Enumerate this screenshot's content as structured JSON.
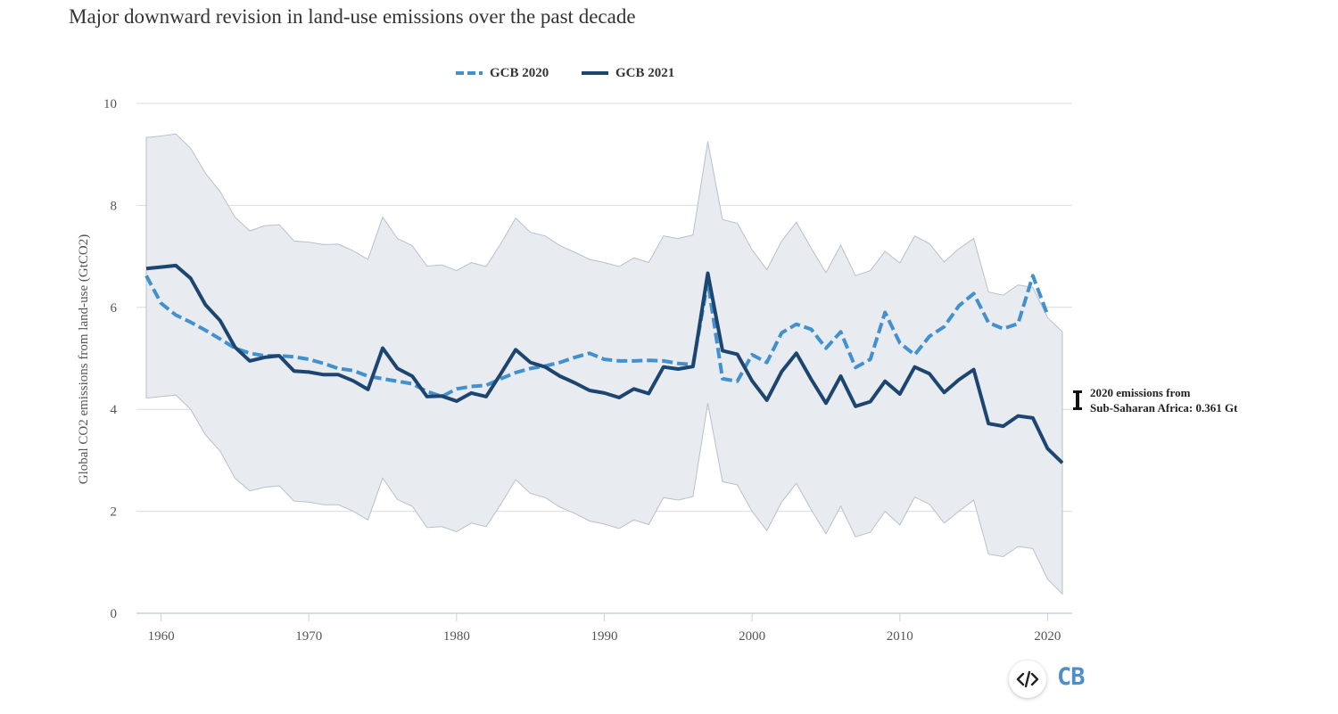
{
  "chart_data": {
    "type": "line",
    "title": "Major downward revision in land-use emissions over the past decade",
    "ylabel": "Global CO2 emissions from land-use (GtCO2)",
    "xlabel": "",
    "ylim": [
      0,
      10
    ],
    "xlim": [
      1959,
      2021
    ],
    "y_ticks": [
      0,
      2,
      4,
      6,
      8,
      10
    ],
    "x_ticks": [
      1960,
      1970,
      1980,
      1990,
      2000,
      2010,
      2020
    ],
    "grid": true,
    "legend_position": "top-center",
    "series": [
      {
        "name": "GCB 2020",
        "style": "dashed",
        "color": "#4290cd",
        "x_start": 1959,
        "values": [
          6.62,
          6.08,
          5.85,
          5.71,
          5.55,
          5.38,
          5.2,
          5.1,
          5.05,
          5.05,
          5.03,
          4.98,
          4.9,
          4.8,
          4.76,
          4.65,
          4.6,
          4.55,
          4.5,
          4.35,
          4.25,
          4.4,
          4.45,
          4.47,
          4.6,
          4.72,
          4.8,
          4.85,
          4.92,
          5.02,
          5.1,
          4.98,
          4.95,
          4.95,
          4.96,
          4.95,
          4.9,
          4.88,
          6.5,
          4.6,
          4.55,
          5.07,
          4.92,
          5.5,
          5.67,
          5.57,
          5.2,
          5.52,
          4.82,
          4.98,
          5.9,
          5.3,
          5.07,
          5.43,
          5.62,
          6.03,
          6.27,
          5.7,
          5.58,
          5.68,
          6.62,
          5.85
        ]
      },
      {
        "name": "GCB 2021",
        "style": "solid",
        "color": "#1c4570",
        "x_start": 1959,
        "values": [
          6.76,
          6.79,
          6.82,
          6.57,
          6.05,
          5.74,
          5.22,
          4.95,
          5.02,
          5.05,
          4.75,
          4.73,
          4.68,
          4.68,
          4.56,
          4.39,
          5.2,
          4.8,
          4.65,
          4.25,
          4.26,
          4.16,
          4.32,
          4.25,
          4.7,
          5.17,
          4.92,
          4.83,
          4.65,
          4.52,
          4.37,
          4.32,
          4.23,
          4.4,
          4.31,
          4.83,
          4.79,
          4.84,
          6.67,
          5.15,
          5.08,
          4.56,
          4.18,
          4.74,
          5.1,
          4.59,
          4.12,
          4.65,
          4.06,
          4.15,
          4.55,
          4.3,
          4.83,
          4.7,
          4.33,
          4.58,
          4.78,
          3.72,
          3.67,
          3.87,
          3.83,
          3.23,
          2.95
        ]
      }
    ],
    "uncertainty_band": {
      "color": "#e8ebf0",
      "x_start": 1959,
      "upper": [
        9.33,
        9.36,
        9.4,
        9.12,
        8.63,
        8.27,
        7.77,
        7.5,
        7.6,
        7.62,
        7.3,
        7.28,
        7.23,
        7.24,
        7.11,
        6.94,
        7.77,
        7.35,
        7.21,
        6.81,
        6.83,
        6.72,
        6.88,
        6.8,
        7.25,
        7.75,
        7.47,
        7.4,
        7.21,
        7.08,
        6.94,
        6.88,
        6.8,
        6.97,
        6.88,
        7.4,
        7.35,
        7.42,
        9.25,
        7.72,
        7.65,
        7.13,
        6.74,
        7.3,
        7.67,
        7.16,
        6.68,
        7.22,
        6.62,
        6.72,
        7.1,
        6.87,
        7.4,
        7.25,
        6.89,
        7.15,
        7.35,
        6.3,
        6.24,
        6.44,
        6.39,
        5.8,
        5.52
      ],
      "lower": [
        4.22,
        4.25,
        4.28,
        4.0,
        3.5,
        3.18,
        2.65,
        2.4,
        2.47,
        2.5,
        2.2,
        2.18,
        2.13,
        2.13,
        2.0,
        1.83,
        2.65,
        2.23,
        2.1,
        1.68,
        1.7,
        1.6,
        1.77,
        1.7,
        2.14,
        2.62,
        2.35,
        2.27,
        2.08,
        1.96,
        1.81,
        1.75,
        1.66,
        1.83,
        1.74,
        2.27,
        2.22,
        2.29,
        4.12,
        2.58,
        2.52,
        2.0,
        1.62,
        2.18,
        2.55,
        2.03,
        1.56,
        2.1,
        1.5,
        1.59,
        2.0,
        1.73,
        2.28,
        2.14,
        1.77,
        2.0,
        2.22,
        1.16,
        1.11,
        1.31,
        1.27,
        0.67,
        0.38
      ]
    },
    "annotation": {
      "line1": "2020 emissions from",
      "line2": "Sub-Saharan Africa: 0.361 Gt",
      "value": 0.361
    }
  },
  "icons": {
    "embed": "code-embed-icon",
    "logo": "carbon-brief-logo"
  },
  "logo_text": "CB"
}
